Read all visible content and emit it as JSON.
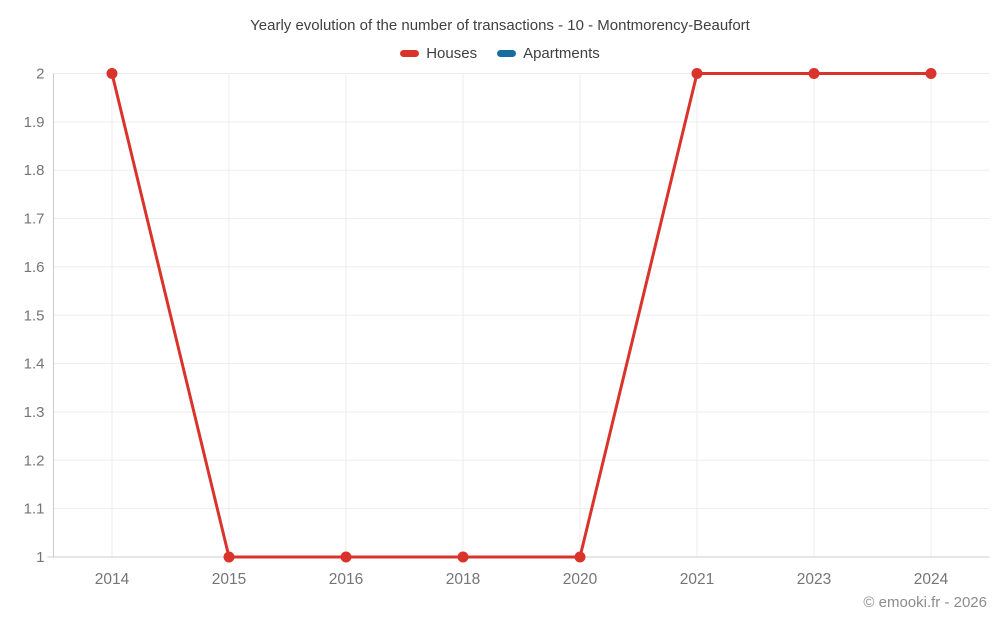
{
  "footer": {
    "copyright": "© emooki.fr - 2026"
  },
  "chart_data": {
    "type": "line",
    "title": "Yearly evolution of the number of transactions - 10 - Montmorency-Beaufort",
    "categories": [
      "2014",
      "2015",
      "2016",
      "2018",
      "2020",
      "2021",
      "2023",
      "2024"
    ],
    "series": [
      {
        "name": "Houses",
        "color": "#d9342c",
        "values": [
          2,
          1,
          1,
          1,
          1,
          2,
          2,
          2
        ]
      },
      {
        "name": "Apartments",
        "color": "#176ca0",
        "values": []
      }
    ],
    "xlabel": "",
    "ylabel": "",
    "ylim": [
      1,
      2
    ],
    "ytick_step": 0.1,
    "ytick_labels": [
      "1",
      "1.1",
      "1.2",
      "1.3",
      "1.4",
      "1.5",
      "1.6",
      "1.7",
      "1.8",
      "1.9",
      "2"
    ],
    "grid": true,
    "legend_position": "top",
    "marker_radius": 5.5,
    "line_width": 3,
    "colors": {
      "grid": "#ededed",
      "axis": "#cccccc",
      "tick_text": "#757575",
      "title_text": "#404040",
      "copyright_text": "#8c8c8c"
    }
  }
}
